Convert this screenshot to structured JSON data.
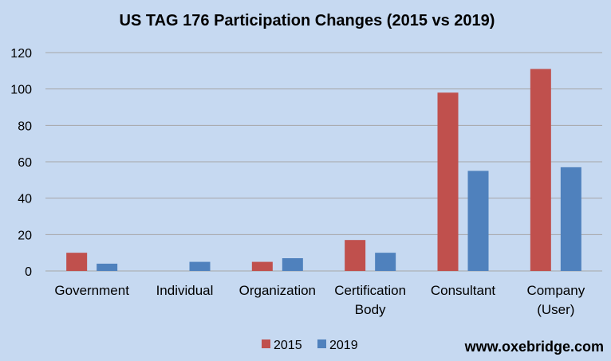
{
  "chart_data": {
    "type": "bar",
    "title": "US TAG 176 Participation Changes (2015 vs 2019)",
    "categories": [
      [
        "Government"
      ],
      [
        "Individual"
      ],
      [
        "Organization"
      ],
      [
        "Certification",
        "Body"
      ],
      [
        "Consultant"
      ],
      [
        "Company",
        "(User)"
      ]
    ],
    "series": [
      {
        "name": "2015",
        "color": "#c0504d",
        "values": [
          10,
          0,
          5,
          17,
          98,
          111
        ]
      },
      {
        "name": "2019",
        "color": "#4f81bd",
        "values": [
          4,
          5,
          7,
          10,
          55,
          57
        ]
      }
    ],
    "ylim": [
      0,
      120
    ],
    "yticks": [
      0,
      20,
      40,
      60,
      80,
      100,
      120
    ],
    "grid": true,
    "legend_position": "bottom"
  },
  "watermark": "www.oxebridge.com",
  "colors": {
    "background": "#c6d9f1",
    "gridline": "#a6a6a6"
  }
}
